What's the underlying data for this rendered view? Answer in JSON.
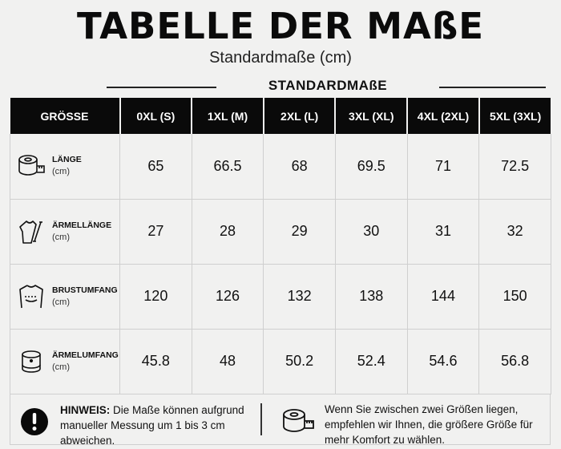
{
  "header": {
    "title": "TABELLE DER MAßE",
    "subtitle": "Standardmaße (cm)",
    "section_label": "STANDARDMAßE"
  },
  "table": {
    "columns": [
      "GRÖSSE",
      "0XL (S)",
      "1XL (M)",
      "2XL (L)",
      "3XL (XL)",
      "4XL (2XL)",
      "5XL (3XL)"
    ],
    "rows": [
      {
        "name": "LÄNGE",
        "unit": "(cm)",
        "icon": "measuring-tape-icon",
        "values": [
          "65",
          "66.5",
          "68",
          "69.5",
          "71",
          "72.5"
        ]
      },
      {
        "name": "ÄRMELLÄNGE",
        "unit": "(cm)",
        "icon": "sleeve-length-icon",
        "values": [
          "27",
          "28",
          "29",
          "30",
          "31",
          "32"
        ]
      },
      {
        "name": "BRUSTUMFANG",
        "unit": "(cm)",
        "icon": "chest-icon",
        "values": [
          "120",
          "126",
          "132",
          "138",
          "144",
          "150"
        ]
      },
      {
        "name": "ÄRMELUMFANG",
        "unit": "(cm)",
        "icon": "sleeve-cuff-icon",
        "values": [
          "45.8",
          "48",
          "50.2",
          "52.4",
          "54.6",
          "56.8"
        ]
      }
    ]
  },
  "footer": {
    "hint_label": "HINWEIS:",
    "hint_text": " Die Maße können aufgrund manueller Messung um 1 bis 3 cm abweichen.",
    "advice_text": "Wenn Sie zwischen zwei Größen liegen, empfehlen wir Ihnen, die größere Größe für mehr Komfort zu wählen."
  }
}
